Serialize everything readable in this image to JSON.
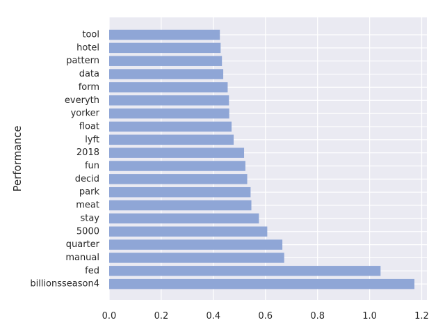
{
  "chart_data": {
    "type": "bar",
    "orientation": "horizontal",
    "title": "",
    "xlabel": "",
    "ylabel": "Performance",
    "xlim": [
      0,
      1.22
    ],
    "xticks": [
      0.0,
      0.2,
      0.4,
      0.6,
      0.8,
      1.0,
      1.2
    ],
    "xtick_labels": [
      "0.0",
      "0.2",
      "0.4",
      "0.6",
      "0.8",
      "1.0",
      "1.2"
    ],
    "grid": true,
    "bar_color": "#8fa6d6",
    "background_color": "#eaeaf2",
    "categories": [
      "tool",
      "hotel",
      "pattern",
      "data",
      "form",
      "everyth",
      "yorker",
      "float",
      "lyft",
      "2018",
      "fun",
      "decid",
      "park",
      "meat",
      "stay",
      "5000",
      "quarter",
      "manual",
      "fed",
      "billionsseason4"
    ],
    "values": [
      0.425,
      0.428,
      0.433,
      0.438,
      0.455,
      0.46,
      0.461,
      0.47,
      0.478,
      0.518,
      0.523,
      0.53,
      0.543,
      0.546,
      0.575,
      0.607,
      0.665,
      0.672,
      1.042,
      1.172
    ]
  }
}
